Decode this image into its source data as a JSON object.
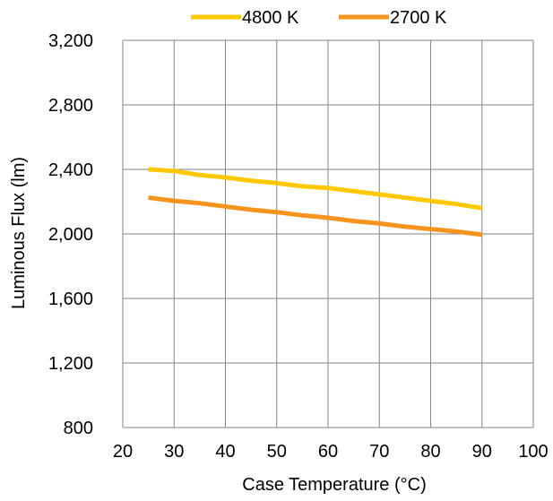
{
  "chart_data": {
    "type": "line",
    "xlabel": "Case Temperature (°C)",
    "ylabel": "Luminous Flux (lm)",
    "xlim": [
      20,
      100
    ],
    "ylim": [
      800,
      3200
    ],
    "x_ticks": [
      "20",
      "30",
      "40",
      "50",
      "60",
      "70",
      "80",
      "90",
      "100"
    ],
    "y_ticks": [
      "800",
      "1,200",
      "1,600",
      "2,000",
      "2,400",
      "2,800",
      "3,200"
    ],
    "grid": true,
    "legend_position": "top",
    "series": [
      {
        "name": "4800 K",
        "color": "#FFC800",
        "x": [
          25,
          30,
          35,
          40,
          45,
          50,
          55,
          60,
          65,
          70,
          75,
          80,
          85,
          90
        ],
        "y": [
          2400,
          2390,
          2365,
          2350,
          2330,
          2315,
          2295,
          2285,
          2265,
          2245,
          2225,
          2205,
          2185,
          2160
        ]
      },
      {
        "name": "2700 K",
        "color": "#F7941D",
        "x": [
          25,
          30,
          35,
          40,
          45,
          50,
          55,
          60,
          65,
          70,
          75,
          80,
          85,
          90
        ],
        "y": [
          2225,
          2205,
          2190,
          2170,
          2150,
          2135,
          2115,
          2100,
          2080,
          2065,
          2045,
          2030,
          2015,
          1995
        ]
      }
    ]
  }
}
